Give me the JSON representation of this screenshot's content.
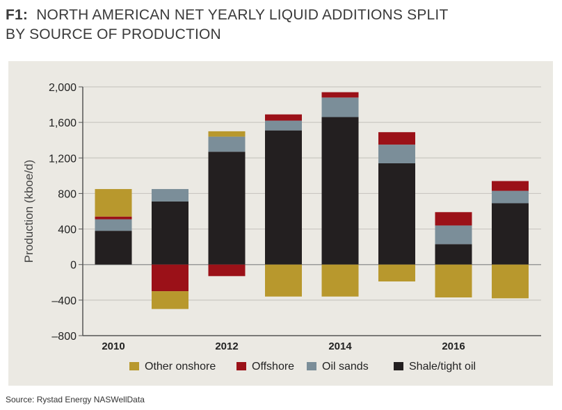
{
  "title": {
    "prefix": "F1:",
    "text": "NORTH AMERICAN NET YEARLY LIQUID ADDITIONS SPLIT",
    "text2": "BY SOURCE OF PRODUCTION"
  },
  "source": "Source: Rystad Energy NASWellData",
  "chart_data": {
    "type": "bar",
    "stacked": true,
    "title": "",
    "xlabel": "",
    "ylabel": "Production (kboe/d)",
    "ylim": [
      -800,
      2000
    ],
    "yticks": [
      "2,000",
      "1,600",
      "1,200",
      "800",
      "400",
      "0",
      "–400",
      "–800"
    ],
    "ytick_values": [
      2000,
      1600,
      1200,
      800,
      400,
      0,
      -400,
      -800
    ],
    "categories": [
      2010,
      2011,
      2012,
      2013,
      2014,
      2015,
      2016,
      2017
    ],
    "xtick_labels": [
      "2010",
      "2012",
      "2014",
      "2016"
    ],
    "grid": true,
    "legend_position": "bottom",
    "series": [
      {
        "name": "Shale/tight oil",
        "color": "#231f20",
        "values": [
          380,
          710,
          1270,
          1510,
          1660,
          1140,
          230,
          690
        ]
      },
      {
        "name": "Oil sands",
        "color": "#7b8e99",
        "values": [
          130,
          140,
          170,
          110,
          220,
          210,
          210,
          140
        ]
      },
      {
        "name": "Offshore",
        "color": "#9b1118",
        "values": [
          30,
          -300,
          -130,
          70,
          60,
          140,
          150,
          110
        ]
      },
      {
        "name": "Other onshore",
        "color": "#b8982d",
        "values": [
          310,
          -200,
          60,
          -360,
          -360,
          -190,
          -370,
          -380
        ]
      }
    ],
    "legend_order": [
      "Other onshore",
      "Offshore",
      "Oil sands",
      "Shale/tight oil"
    ]
  }
}
